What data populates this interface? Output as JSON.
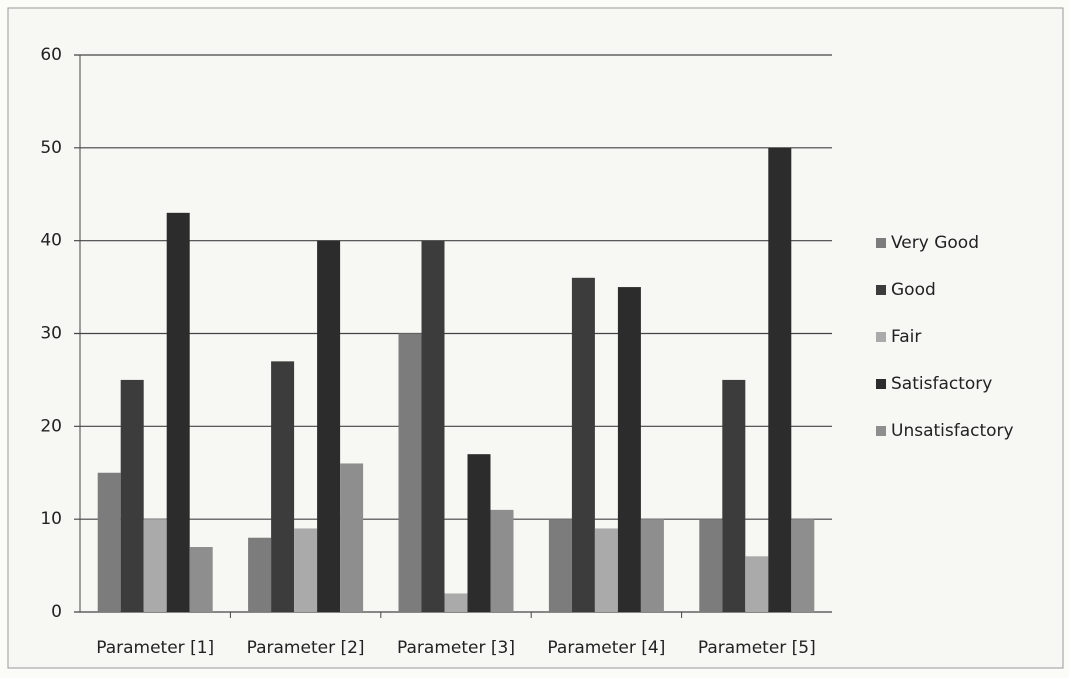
{
  "chart_data": {
    "type": "bar",
    "categories": [
      "Parameter [1]",
      "Parameter [2]",
      "Parameter [3]",
      "Parameter [4]",
      "Parameter [5]"
    ],
    "series": [
      {
        "name": "Very Good",
        "color": "#7c7c7c",
        "values": [
          15,
          8,
          30,
          10,
          10
        ]
      },
      {
        "name": "Good",
        "color": "#3c3c3c",
        "values": [
          25,
          27,
          40,
          36,
          25
        ]
      },
      {
        "name": "Fair",
        "color": "#aaaaaa",
        "values": [
          10,
          9,
          2,
          9,
          6
        ]
      },
      {
        "name": "Satisfactory",
        "color": "#2c2c2c",
        "values": [
          43,
          40,
          17,
          35,
          50
        ]
      },
      {
        "name": "Unsatisfactory",
        "color": "#8e8e8e",
        "values": [
          7,
          16,
          11,
          10,
          10
        ]
      }
    ],
    "ylim": [
      0,
      60
    ],
    "yticks": [
      0,
      10,
      20,
      30,
      40,
      50,
      60
    ],
    "grid": true,
    "legend": "right"
  }
}
